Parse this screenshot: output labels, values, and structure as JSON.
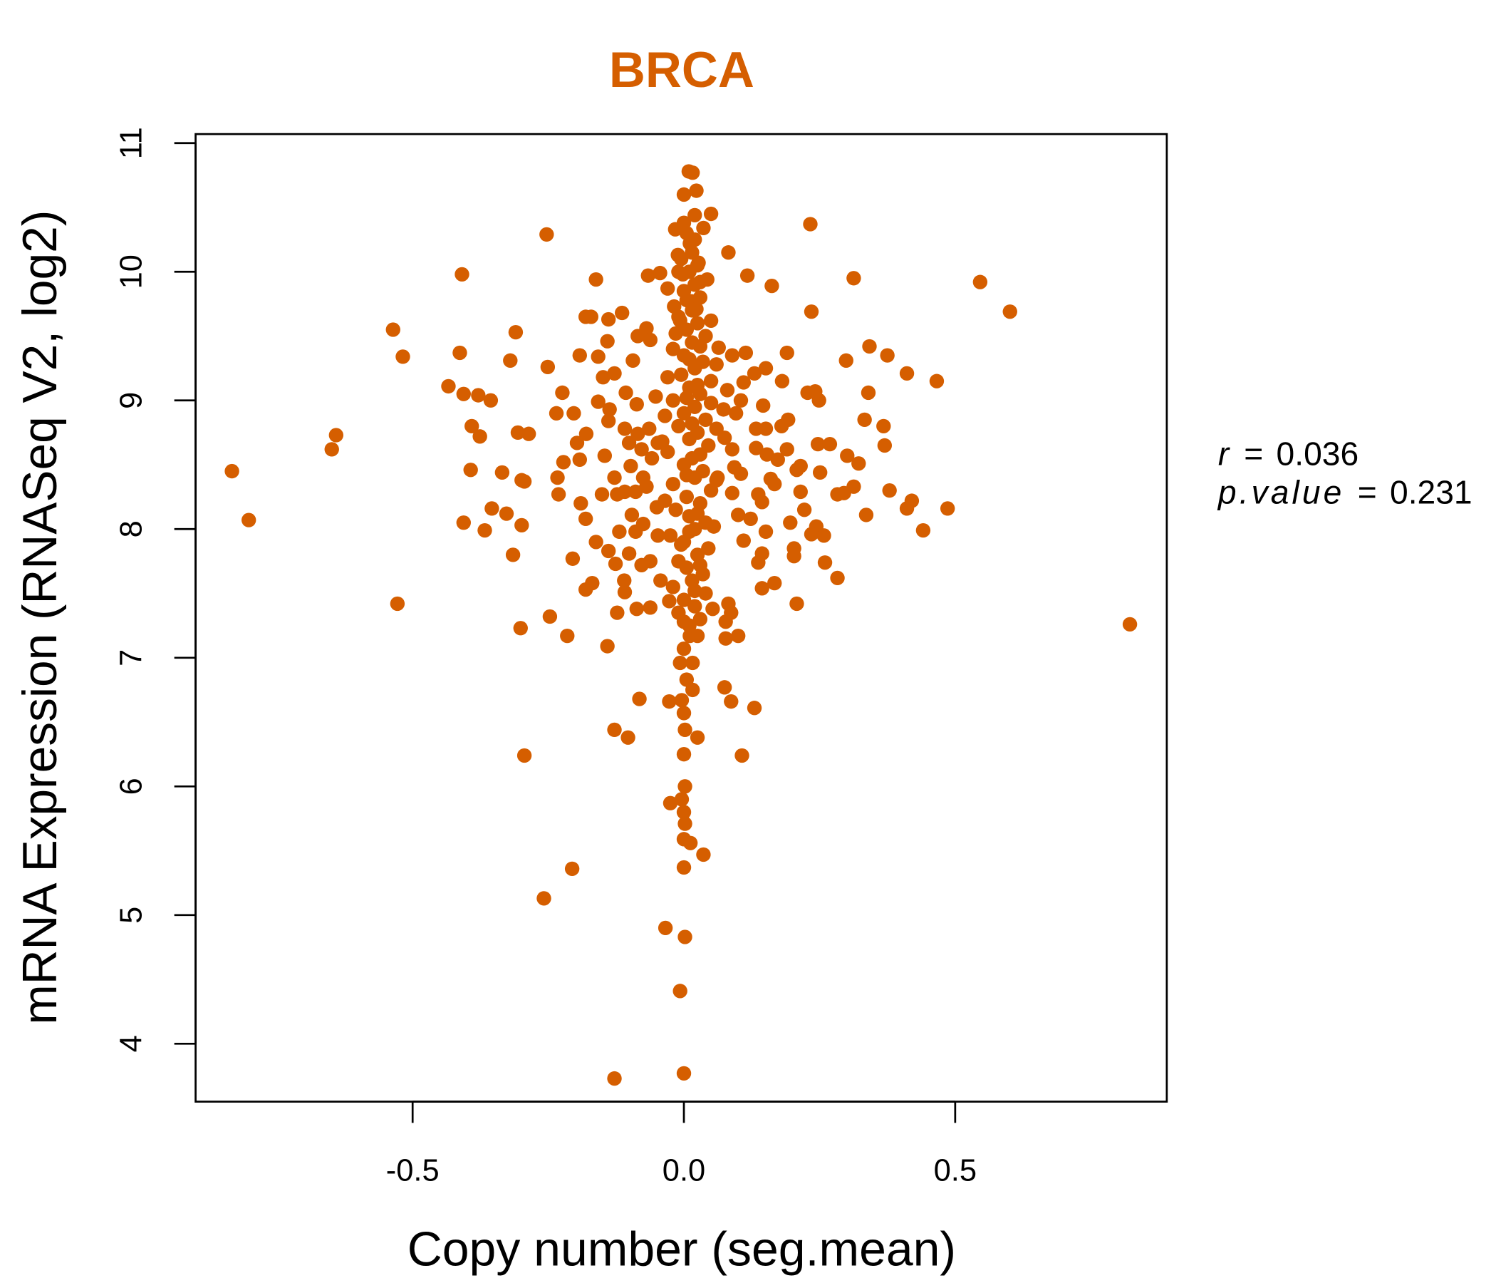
{
  "chart_data": {
    "type": "scatter",
    "title": "BRCA",
    "xlabel": "Copy number (seg.mean)",
    "ylabel": "mRNA Expression (RNASeq V2, log2)",
    "xlim": [
      -0.9,
      0.89
    ],
    "ylim": [
      3.55,
      11.07
    ],
    "xticks": [
      -0.5,
      0.0,
      0.5
    ],
    "xtick_labels": [
      "-0.5",
      "0.0",
      "0.5"
    ],
    "yticks": [
      4,
      5,
      6,
      7,
      8,
      9,
      10,
      11
    ],
    "ytick_labels": [
      "4",
      "5",
      "6",
      "7",
      "8",
      "9",
      "10",
      "11"
    ],
    "grid": false,
    "point_color": "#D55E00",
    "title_color": "#D55E00",
    "annotation": {
      "r_label": "r",
      "r_value": "0.036",
      "p_label": "p.value",
      "p_value": "0.231",
      "equals": "="
    },
    "points": [
      [
        -0.833,
        8.45
      ],
      [
        -0.802,
        8.07
      ],
      [
        -0.649,
        8.62
      ],
      [
        -0.641,
        8.73
      ],
      [
        -0.536,
        9.55
      ],
      [
        -0.518,
        9.34
      ],
      [
        -0.528,
        7.42
      ],
      [
        -0.409,
        9.98
      ],
      [
        -0.413,
        9.37
      ],
      [
        -0.434,
        9.11
      ],
      [
        -0.406,
        9.05
      ],
      [
        -0.379,
        9.04
      ],
      [
        -0.356,
        9.0
      ],
      [
        -0.391,
        8.8
      ],
      [
        -0.376,
        8.72
      ],
      [
        -0.393,
        8.46
      ],
      [
        -0.335,
        8.44
      ],
      [
        -0.354,
        8.16
      ],
      [
        -0.327,
        8.12
      ],
      [
        -0.406,
        8.05
      ],
      [
        -0.367,
        7.99
      ],
      [
        -0.299,
        8.03
      ],
      [
        -0.315,
        7.8
      ],
      [
        -0.31,
        9.53
      ],
      [
        -0.32,
        9.31
      ],
      [
        -0.306,
        8.75
      ],
      [
        -0.286,
        8.74
      ],
      [
        -0.299,
        8.38
      ],
      [
        -0.294,
        8.37
      ],
      [
        -0.301,
        7.23
      ],
      [
        -0.294,
        6.24
      ],
      [
        -0.253,
        10.29
      ],
      [
        -0.251,
        9.26
      ],
      [
        -0.224,
        9.06
      ],
      [
        -0.235,
        8.9
      ],
      [
        -0.222,
        8.52
      ],
      [
        -0.233,
        8.4
      ],
      [
        -0.231,
        8.27
      ],
      [
        -0.247,
        7.32
      ],
      [
        -0.215,
        7.17
      ],
      [
        -0.258,
        5.13
      ],
      [
        -0.206,
        5.36
      ],
      [
        -0.162,
        9.94
      ],
      [
        -0.181,
        9.65
      ],
      [
        -0.171,
        9.65
      ],
      [
        -0.192,
        9.35
      ],
      [
        -0.158,
        9.34
      ],
      [
        -0.203,
        8.9
      ],
      [
        -0.18,
        8.74
      ],
      [
        -0.197,
        8.67
      ],
      [
        -0.192,
        8.54
      ],
      [
        -0.19,
        8.2
      ],
      [
        -0.181,
        8.08
      ],
      [
        -0.162,
        7.9
      ],
      [
        -0.205,
        7.77
      ],
      [
        -0.181,
        7.53
      ],
      [
        -0.169,
        7.58
      ],
      [
        -0.141,
        7.09
      ],
      [
        -0.128,
        6.44
      ],
      [
        -0.103,
        6.38
      ],
      [
        -0.128,
        3.73
      ],
      [
        -0.139,
        9.63
      ],
      [
        -0.114,
        9.68
      ],
      [
        -0.141,
        9.46
      ],
      [
        -0.149,
        9.18
      ],
      [
        -0.128,
        9.21
      ],
      [
        -0.158,
        8.99
      ],
      [
        -0.137,
        8.93
      ],
      [
        -0.139,
        8.84
      ],
      [
        -0.146,
        8.57
      ],
      [
        -0.128,
        8.4
      ],
      [
        -0.151,
        8.27
      ],
      [
        -0.123,
        8.27
      ],
      [
        -0.119,
        7.98
      ],
      [
        -0.139,
        7.83
      ],
      [
        -0.126,
        7.73
      ],
      [
        -0.11,
        7.6
      ],
      [
        -0.109,
        7.51
      ],
      [
        -0.123,
        7.35
      ],
      [
        -0.087,
        7.38
      ],
      [
        -0.062,
        7.39
      ],
      [
        -0.082,
        6.68
      ],
      [
        -0.034,
        4.9
      ],
      [
        -0.085,
        9.5
      ],
      [
        -0.069,
        9.56
      ],
      [
        -0.062,
        9.47
      ],
      [
        -0.094,
        9.31
      ],
      [
        -0.107,
        9.06
      ],
      [
        -0.087,
        8.97
      ],
      [
        -0.109,
        8.78
      ],
      [
        -0.085,
        8.74
      ],
      [
        -0.064,
        8.78
      ],
      [
        -0.101,
        8.67
      ],
      [
        -0.078,
        8.62
      ],
      [
        -0.059,
        8.55
      ],
      [
        -0.098,
        8.49
      ],
      [
        -0.075,
        8.4
      ],
      [
        -0.109,
        8.29
      ],
      [
        -0.089,
        8.29
      ],
      [
        -0.069,
        8.33
      ],
      [
        -0.096,
        8.11
      ],
      [
        -0.075,
        8.04
      ],
      [
        -0.089,
        7.98
      ],
      [
        -0.101,
        7.81
      ],
      [
        -0.078,
        7.72
      ],
      [
        -0.062,
        7.75
      ],
      [
        -0.066,
        9.97
      ],
      [
        -0.044,
        9.99
      ],
      [
        -0.052,
        9.03
      ],
      [
        -0.048,
        8.67
      ],
      [
        -0.05,
        8.17
      ],
      [
        -0.048,
        7.95
      ],
      [
        -0.043,
        7.6
      ],
      [
        -0.027,
        7.44
      ],
      [
        -0.027,
        6.66
      ],
      [
        -0.025,
        5.87
      ],
      [
        0.0,
        3.77
      ],
      [
        -0.007,
        4.41
      ],
      [
        0.002,
        4.83
      ],
      [
        0.0,
        5.37
      ],
      [
        0.036,
        5.47
      ],
      [
        0.0,
        5.59
      ],
      [
        0.012,
        5.56
      ],
      [
        0.002,
        5.71
      ],
      [
        0.0,
        5.8
      ],
      [
        0.002,
        6.0
      ],
      [
        -0.004,
        5.9
      ],
      [
        0.0,
        6.25
      ],
      [
        0.025,
        6.38
      ],
      [
        0.002,
        6.44
      ],
      [
        0.0,
        6.57
      ],
      [
        -0.004,
        6.67
      ],
      [
        0.016,
        6.75
      ],
      [
        0.005,
        6.83
      ],
      [
        -0.007,
        6.96
      ],
      [
        0.016,
        6.96
      ],
      [
        0.0,
        7.07
      ],
      [
        0.011,
        7.17
      ],
      [
        0.025,
        7.17
      ],
      [
        0.016,
        10.77
      ],
      [
        0.009,
        10.78
      ],
      [
        0.023,
        10.63
      ],
      [
        0.0,
        10.6
      ],
      [
        0.05,
        10.45
      ],
      [
        0.02,
        10.44
      ],
      [
        0.0,
        10.38
      ],
      [
        -0.016,
        10.33
      ],
      [
        0.036,
        10.34
      ],
      [
        0.011,
        10.22
      ],
      [
        -0.011,
        10.13
      ],
      [
        0.027,
        10.07
      ],
      [
        -0.002,
        9.98
      ],
      [
        0.043,
        9.94
      ],
      [
        -0.03,
        9.87
      ],
      [
        0.014,
        9.77
      ],
      [
        -0.018,
        9.73
      ],
      [
        0.023,
        9.71
      ],
      [
        -0.007,
        9.62
      ],
      [
        0.01,
        7.25
      ],
      [
        0.03,
        7.3
      ],
      [
        -0.01,
        7.35
      ],
      [
        0.02,
        7.4
      ],
      [
        0.0,
        7.45
      ],
      [
        0.04,
        7.5
      ],
      [
        -0.02,
        7.55
      ],
      [
        0.015,
        7.6
      ],
      [
        0.035,
        7.65
      ],
      [
        0.005,
        7.7
      ],
      [
        -0.01,
        7.75
      ],
      [
        0.025,
        7.8
      ],
      [
        0.045,
        7.85
      ],
      [
        0.0,
        7.9
      ],
      [
        -0.025,
        7.95
      ],
      [
        0.02,
        8.0
      ],
      [
        0.04,
        8.05
      ],
      [
        0.01,
        8.1
      ],
      [
        -0.015,
        8.15
      ],
      [
        0.03,
        8.2
      ],
      [
        0.005,
        8.25
      ],
      [
        0.05,
        8.3
      ],
      [
        -0.02,
        8.35
      ],
      [
        0.02,
        8.4
      ],
      [
        0.035,
        8.45
      ],
      [
        0.0,
        8.5
      ],
      [
        0.015,
        8.55
      ],
      [
        -0.03,
        8.6
      ],
      [
        0.045,
        8.65
      ],
      [
        0.01,
        8.7
      ],
      [
        0.025,
        8.75
      ],
      [
        -0.01,
        8.8
      ],
      [
        0.04,
        8.85
      ],
      [
        0.0,
        8.9
      ],
      [
        0.02,
        8.95
      ],
      [
        -0.02,
        9.0
      ],
      [
        0.03,
        9.05
      ],
      [
        0.01,
        9.1
      ],
      [
        0.05,
        9.15
      ],
      [
        -0.005,
        9.2
      ],
      [
        0.02,
        9.25
      ],
      [
        0.035,
        9.3
      ],
      [
        0.0,
        9.35
      ],
      [
        -0.02,
        9.4
      ],
      [
        0.015,
        9.45
      ],
      [
        0.04,
        9.5
      ],
      [
        0.005,
        9.55
      ],
      [
        0.025,
        9.6
      ],
      [
        -0.01,
        9.65
      ],
      [
        0.015,
        9.7
      ],
      [
        0.03,
        9.8
      ],
      [
        0.0,
        9.85
      ],
      [
        0.02,
        9.9
      ],
      [
        0.01,
        10.0
      ],
      [
        0.025,
        10.05
      ],
      [
        -0.005,
        10.1
      ],
      [
        0.015,
        10.15
      ],
      [
        0.02,
        10.25
      ],
      [
        0.005,
        10.3
      ],
      [
        0.0,
        7.28
      ],
      [
        0.02,
        7.52
      ],
      [
        0.03,
        7.72
      ],
      [
        -0.005,
        7.88
      ],
      [
        0.01,
        7.98
      ],
      [
        0.055,
        8.02
      ],
      [
        0.025,
        8.12
      ],
      [
        -0.035,
        8.22
      ],
      [
        0.06,
        8.38
      ],
      [
        0.005,
        8.42
      ],
      [
        0.03,
        8.58
      ],
      [
        -0.04,
        8.68
      ],
      [
        0.06,
        8.78
      ],
      [
        0.015,
        8.82
      ],
      [
        -0.035,
        8.88
      ],
      [
        0.05,
        8.98
      ],
      [
        0.005,
        9.02
      ],
      [
        0.025,
        9.12
      ],
      [
        -0.03,
        9.18
      ],
      [
        0.06,
        9.28
      ],
      [
        0.01,
        9.32
      ],
      [
        0.03,
        9.42
      ],
      [
        -0.015,
        9.52
      ],
      [
        0.05,
        9.62
      ],
      [
        0.005,
        9.78
      ],
      [
        0.03,
        9.92
      ],
      [
        -0.01,
        10.0
      ],
      [
        0.082,
        10.15
      ],
      [
        0.117,
        9.97
      ],
      [
        0.162,
        9.89
      ],
      [
        0.233,
        10.37
      ],
      [
        0.235,
        9.69
      ],
      [
        0.313,
        9.95
      ],
      [
        0.546,
        9.92
      ],
      [
        0.601,
        9.69
      ],
      [
        0.822,
        7.26
      ],
      [
        0.064,
        9.41
      ],
      [
        0.089,
        9.35
      ],
      [
        0.114,
        9.37
      ],
      [
        0.19,
        9.37
      ],
      [
        0.151,
        9.25
      ],
      [
        0.13,
        9.21
      ],
      [
        0.11,
        9.14
      ],
      [
        0.181,
        9.15
      ],
      [
        0.08,
        9.08
      ],
      [
        0.105,
        9.0
      ],
      [
        0.146,
        8.96
      ],
      [
        0.073,
        8.93
      ],
      [
        0.096,
        8.9
      ],
      [
        0.133,
        8.78
      ],
      [
        0.151,
        8.78
      ],
      [
        0.18,
        8.8
      ],
      [
        0.192,
        8.85
      ],
      [
        0.075,
        8.71
      ],
      [
        0.089,
        8.62
      ],
      [
        0.133,
        8.63
      ],
      [
        0.153,
        8.58
      ],
      [
        0.19,
        8.62
      ],
      [
        0.173,
        8.54
      ],
      [
        0.208,
        8.46
      ],
      [
        0.215,
        8.49
      ],
      [
        0.093,
        8.48
      ],
      [
        0.105,
        8.43
      ],
      [
        0.062,
        8.4
      ],
      [
        0.16,
        8.39
      ],
      [
        0.167,
        8.35
      ],
      [
        0.215,
        8.29
      ],
      [
        0.137,
        8.27
      ],
      [
        0.144,
        8.21
      ],
      [
        0.089,
        8.28
      ],
      [
        0.1,
        8.11
      ],
      [
        0.123,
        8.08
      ],
      [
        0.222,
        8.15
      ],
      [
        0.196,
        8.05
      ],
      [
        0.244,
        8.02
      ],
      [
        0.258,
        7.95
      ],
      [
        0.235,
        7.96
      ],
      [
        0.151,
        7.98
      ],
      [
        0.11,
        7.91
      ],
      [
        0.203,
        7.85
      ],
      [
        0.203,
        7.79
      ],
      [
        0.144,
        7.81
      ],
      [
        0.137,
        7.74
      ],
      [
        0.26,
        7.74
      ],
      [
        0.283,
        7.62
      ],
      [
        0.167,
        7.58
      ],
      [
        0.144,
        7.54
      ],
      [
        0.208,
        7.42
      ],
      [
        0.082,
        7.42
      ],
      [
        0.053,
        7.38
      ],
      [
        0.087,
        7.35
      ],
      [
        0.077,
        7.28
      ],
      [
        0.1,
        7.17
      ],
      [
        0.077,
        7.15
      ],
      [
        0.075,
        6.77
      ],
      [
        0.087,
        6.66
      ],
      [
        0.13,
        6.61
      ],
      [
        0.107,
        6.24
      ],
      [
        0.249,
        9.0
      ],
      [
        0.228,
        9.06
      ],
      [
        0.242,
        9.07
      ],
      [
        0.299,
        9.31
      ],
      [
        0.342,
        9.42
      ],
      [
        0.375,
        9.35
      ],
      [
        0.411,
        9.21
      ],
      [
        0.466,
        9.15
      ],
      [
        0.34,
        9.06
      ],
      [
        0.333,
        8.85
      ],
      [
        0.368,
        8.8
      ],
      [
        0.37,
        8.65
      ],
      [
        0.247,
        8.66
      ],
      [
        0.269,
        8.66
      ],
      [
        0.301,
        8.57
      ],
      [
        0.322,
        8.51
      ],
      [
        0.251,
        8.44
      ],
      [
        0.313,
        8.33
      ],
      [
        0.295,
        8.28
      ],
      [
        0.283,
        8.27
      ],
      [
        0.379,
        8.3
      ],
      [
        0.42,
        8.22
      ],
      [
        0.411,
        8.16
      ],
      [
        0.486,
        8.16
      ],
      [
        0.336,
        8.11
      ],
      [
        0.441,
        7.99
      ]
    ]
  }
}
